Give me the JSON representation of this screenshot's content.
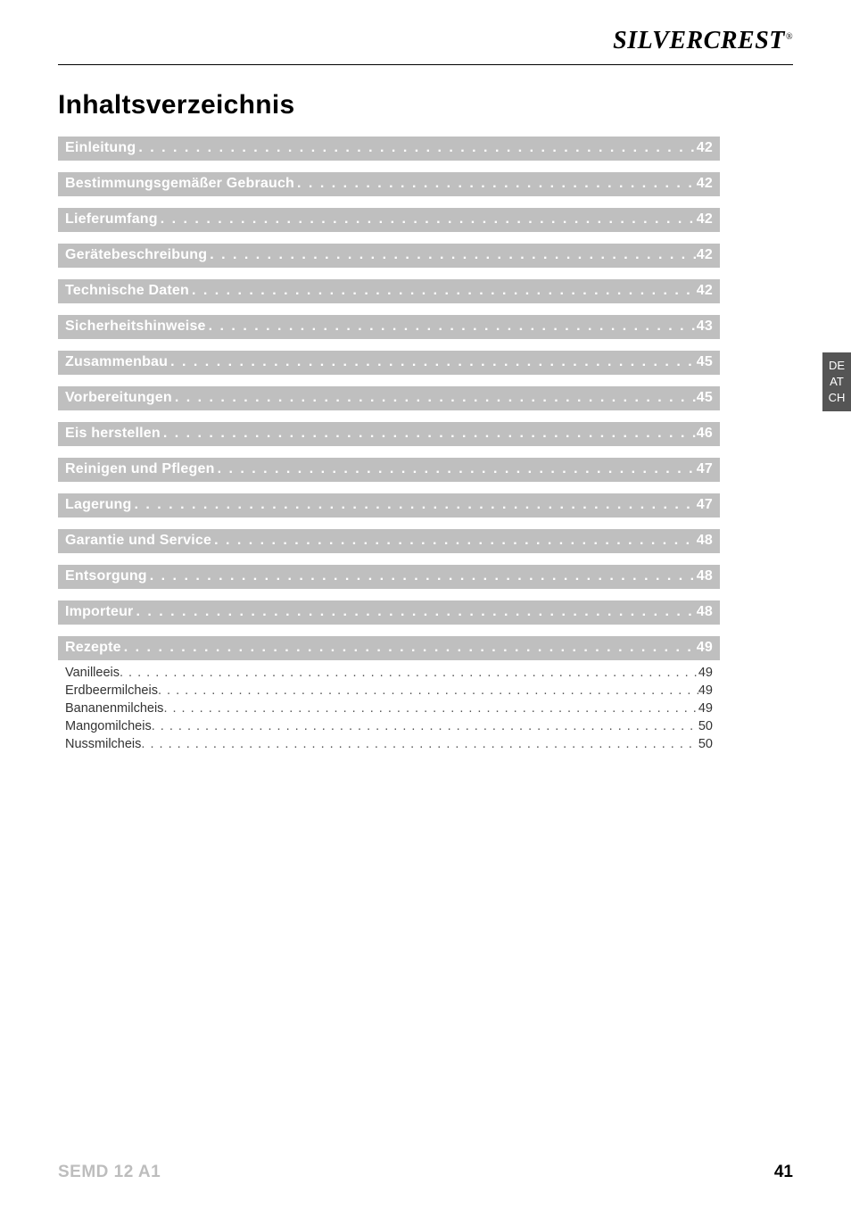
{
  "brand": {
    "name": "SILVERCREST",
    "registered": "®"
  },
  "title": "Inhaltsverzeichnis",
  "lang_tab": [
    "DE",
    "AT",
    "CH"
  ],
  "footer": {
    "model": "SEMD 12 A1",
    "page": "41"
  },
  "colors": {
    "row_bg": "#bfbfbf",
    "row_text": "#ffffff",
    "sub_text": "#333333",
    "tab_bg": "#555555",
    "model_text": "#bdbdbd"
  },
  "dots_main": ". . . . . . . . . . . . . . . . . . . . . . . . . . . . . . . . . . . . . . . . . . . . . . . . . . . . . . . . . . . . . . . . . . . . . . . . . . . . . . . . . . . . . . . . . . . . . . . . . . . . . . . . . . . . . . . . . . . . . . . .",
  "dots_sub": ". . . . . . . . . . . . . . . . . . . . . . . . . . . . . . . . . . . . . . . . . . . . . . . . . . . . . . . . . . . . . . . . . . . . . . . . . . . . . . . . . . . . . . . . . . . . . . . . . . . . . . . . . . . . . . . . . . . . . . . . . . . . . . . . . . . . . . . . . . . . . . . . . . . . . . . . . . . . . . . . . . . . . . . . . .",
  "toc": [
    {
      "label": "Einleitung",
      "page": "42"
    },
    {
      "label": "Bestimmungsgemäßer Gebrauch ",
      "page": "42"
    },
    {
      "label": "Lieferumfang",
      "page": "42"
    },
    {
      "label": "Gerätebeschreibung",
      "page": "42"
    },
    {
      "label": "Technische Daten ",
      "page": "42"
    },
    {
      "label": "Sicherheitshinweise ",
      "page": "43"
    },
    {
      "label": "Zusammenbau ",
      "page": "45"
    },
    {
      "label": "Vorbereitungen",
      "page": "45"
    },
    {
      "label": "Eis herstellen ",
      "page": "46"
    },
    {
      "label": "Reinigen und Pflegen ",
      "page": "47"
    },
    {
      "label": "Lagerung ",
      "page": "47"
    },
    {
      "label": "Garantie und Service ",
      "page": "48"
    },
    {
      "label": "Entsorgung ",
      "page": "48"
    },
    {
      "label": "Importeur ",
      "page": "48"
    },
    {
      "label": "Rezepte ",
      "page": "49",
      "subs": [
        {
          "label": "Vanilleeis ",
          "page": " 49"
        },
        {
          "label": "Erdbeermilcheis ",
          "page": " 49"
        },
        {
          "label": "Bananenmilcheis ",
          "page": " 49"
        },
        {
          "label": "Mangomilcheis ",
          "page": " 50"
        },
        {
          "label": "Nussmilcheis ",
          "page": " 50"
        }
      ]
    }
  ]
}
